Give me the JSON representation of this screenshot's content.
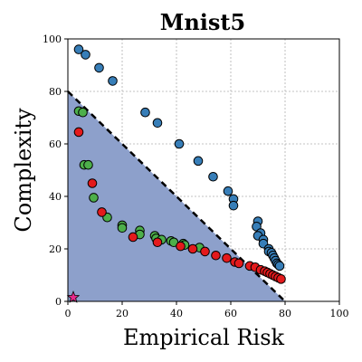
{
  "chart_data": {
    "type": "scatter",
    "title": "Mnist5",
    "xlabel": "Empirical Risk",
    "ylabel": "Complexity",
    "xlim": [
      0,
      100
    ],
    "ylim": [
      0,
      100
    ],
    "xticks": [
      0,
      20,
      40,
      60,
      80,
      100
    ],
    "yticks": [
      0,
      20,
      40,
      60,
      80,
      100
    ],
    "grid": true,
    "colors": {
      "region": "#8da0cb",
      "blue": "#377eb8",
      "green": "#4daf4a",
      "red": "#e41a1c",
      "star": "#e7298a",
      "boundary": "#000000"
    },
    "boundary_line": {
      "x": [
        0,
        80
      ],
      "y": [
        80,
        0
      ]
    },
    "region_polygon": {
      "x": [
        0,
        0,
        80
      ],
      "y": [
        0,
        80,
        0
      ]
    },
    "star": {
      "x": 2,
      "y": 1.5
    },
    "series": [
      {
        "color_key": "blue",
        "x": [
          4,
          6.5,
          11.5,
          16.5,
          28.5,
          33,
          41,
          48,
          53.5,
          59,
          61,
          61,
          70,
          69.5,
          71,
          70,
          72,
          72,
          74,
          74,
          75,
          75.5,
          76,
          76.5,
          77,
          77.5,
          78
        ],
        "y": [
          96,
          94,
          89,
          84,
          72,
          68,
          60,
          53.5,
          47.5,
          42,
          39,
          36.5,
          30.5,
          28.5,
          26,
          25,
          23.5,
          22,
          20,
          19,
          18.5,
          17.5,
          16.5,
          15.5,
          14.5,
          14,
          13.5
        ]
      },
      {
        "color_key": "green",
        "x": [
          4,
          5.5,
          6,
          7.5,
          9.5,
          14.5,
          20,
          20,
          26.5,
          26.5,
          32,
          32.5,
          34.5,
          38,
          39,
          42.5,
          43,
          48.5
        ],
        "y": [
          72.5,
          72,
          52,
          52,
          39.5,
          32,
          29,
          28,
          27,
          25.5,
          25,
          24,
          23.5,
          23,
          22.5,
          22,
          21.5,
          20.5
        ]
      },
      {
        "color_key": "red",
        "x": [
          4,
          9,
          12.5,
          24,
          33,
          41.5,
          46,
          50.5,
          54.5,
          58.5,
          61.5,
          63,
          67,
          69,
          71,
          72.5,
          73.5,
          74.5,
          75.5,
          76.5,
          77.5,
          78.5
        ],
        "y": [
          64.5,
          45,
          34,
          24.5,
          22.5,
          21,
          20,
          19,
          17.5,
          16.5,
          15,
          14.5,
          13.5,
          13,
          12,
          11.5,
          11,
          10.5,
          10,
          9.5,
          9,
          8.5
        ]
      }
    ]
  }
}
